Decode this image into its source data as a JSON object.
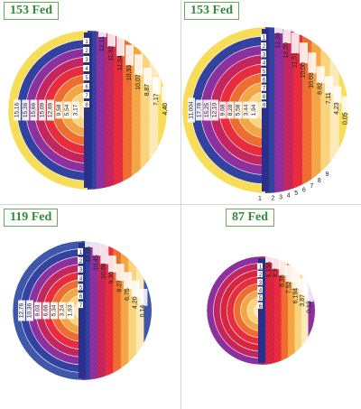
{
  "panels": [
    {
      "label": "153 Fed",
      "colors": [
        "#f7dc55",
        "#2f3e9e",
        "#8a2c9c",
        "#c2215a",
        "#e8283a",
        "#ee6a2c",
        "#f4a443",
        "#f8d37a",
        "#fbe9b8"
      ],
      "right_values": [
        "12,11",
        "11,92",
        "11,54",
        "10,93",
        "10,07",
        "8,87",
        "7,17",
        "4,40"
      ],
      "left_values": [
        "15,16",
        "15,36",
        "15,66",
        "15,09",
        "12,69",
        "9,58",
        "5,54",
        "3,17"
      ],
      "ring_numbers": [
        "1",
        "2",
        "3",
        "4",
        "5",
        "6",
        "7",
        "8"
      ],
      "full_disc": true,
      "bottom_numbers": []
    },
    {
      "label": "153 Fed",
      "colors": [
        "#f7dc55",
        "#2f3e9e",
        "#8a2c9c",
        "#c2215a",
        "#e8283a",
        "#ee6a2c",
        "#f4a443",
        "#f8d37a",
        "#fbe9b8"
      ],
      "right_values": [
        "12,28",
        "12,20",
        "11,51",
        "10,00",
        "10,03",
        "8,82",
        "7,11",
        "4,23",
        "0,05"
      ],
      "left_values": [
        "11,004",
        "17,78",
        "15,25",
        "12,10",
        "9,68",
        "8,28",
        "5,58",
        "3,44",
        "1,94"
      ],
      "ring_numbers": [
        "1",
        "2",
        "3",
        "4",
        "5",
        "6",
        "7",
        "8",
        "9"
      ],
      "full_disc": true,
      "bottom_numbers": [
        "1",
        "2",
        "3",
        "4",
        "5",
        "6",
        "7",
        "8",
        "9"
      ]
    },
    {
      "label": "119 Fed",
      "colors": [
        "#3b54a8",
        "#2f3e9e",
        "#8a2c9c",
        "#c2215a",
        "#e8283a",
        "#ee6a2c",
        "#f4a443",
        "#f8d37a",
        "#fbe9b8"
      ],
      "right_values": [
        "10,66",
        "10,45",
        "10,00",
        "9,30",
        "8,27",
        "6,75",
        "4,20",
        "0,14"
      ],
      "left_values": [
        "12,76",
        "10,36",
        "9,03",
        "6,66",
        "5,34",
        "3,24",
        "1,93"
      ],
      "ring_numbers": [
        "1",
        "2",
        "3",
        "4",
        "5",
        "6",
        "7"
      ],
      "full_disc": false,
      "bottom_numbers": []
    },
    {
      "label": "87 Fed",
      "colors": [
        "#8a2c9c",
        "#c2215a",
        "#d8203a",
        "#e8283a",
        "#ee6a2c",
        "#f4a443",
        "#f8d37a",
        "#fbe9b8"
      ],
      "right_values": [
        "9,156",
        "8,9",
        "8,38",
        "7,52",
        "6,194",
        "3,87",
        "0,13"
      ],
      "left_values": [],
      "ring_numbers": [
        "1",
        "2",
        "3",
        "4",
        "5",
        "6"
      ],
      "full_disc": false,
      "bottom_numbers": []
    }
  ]
}
